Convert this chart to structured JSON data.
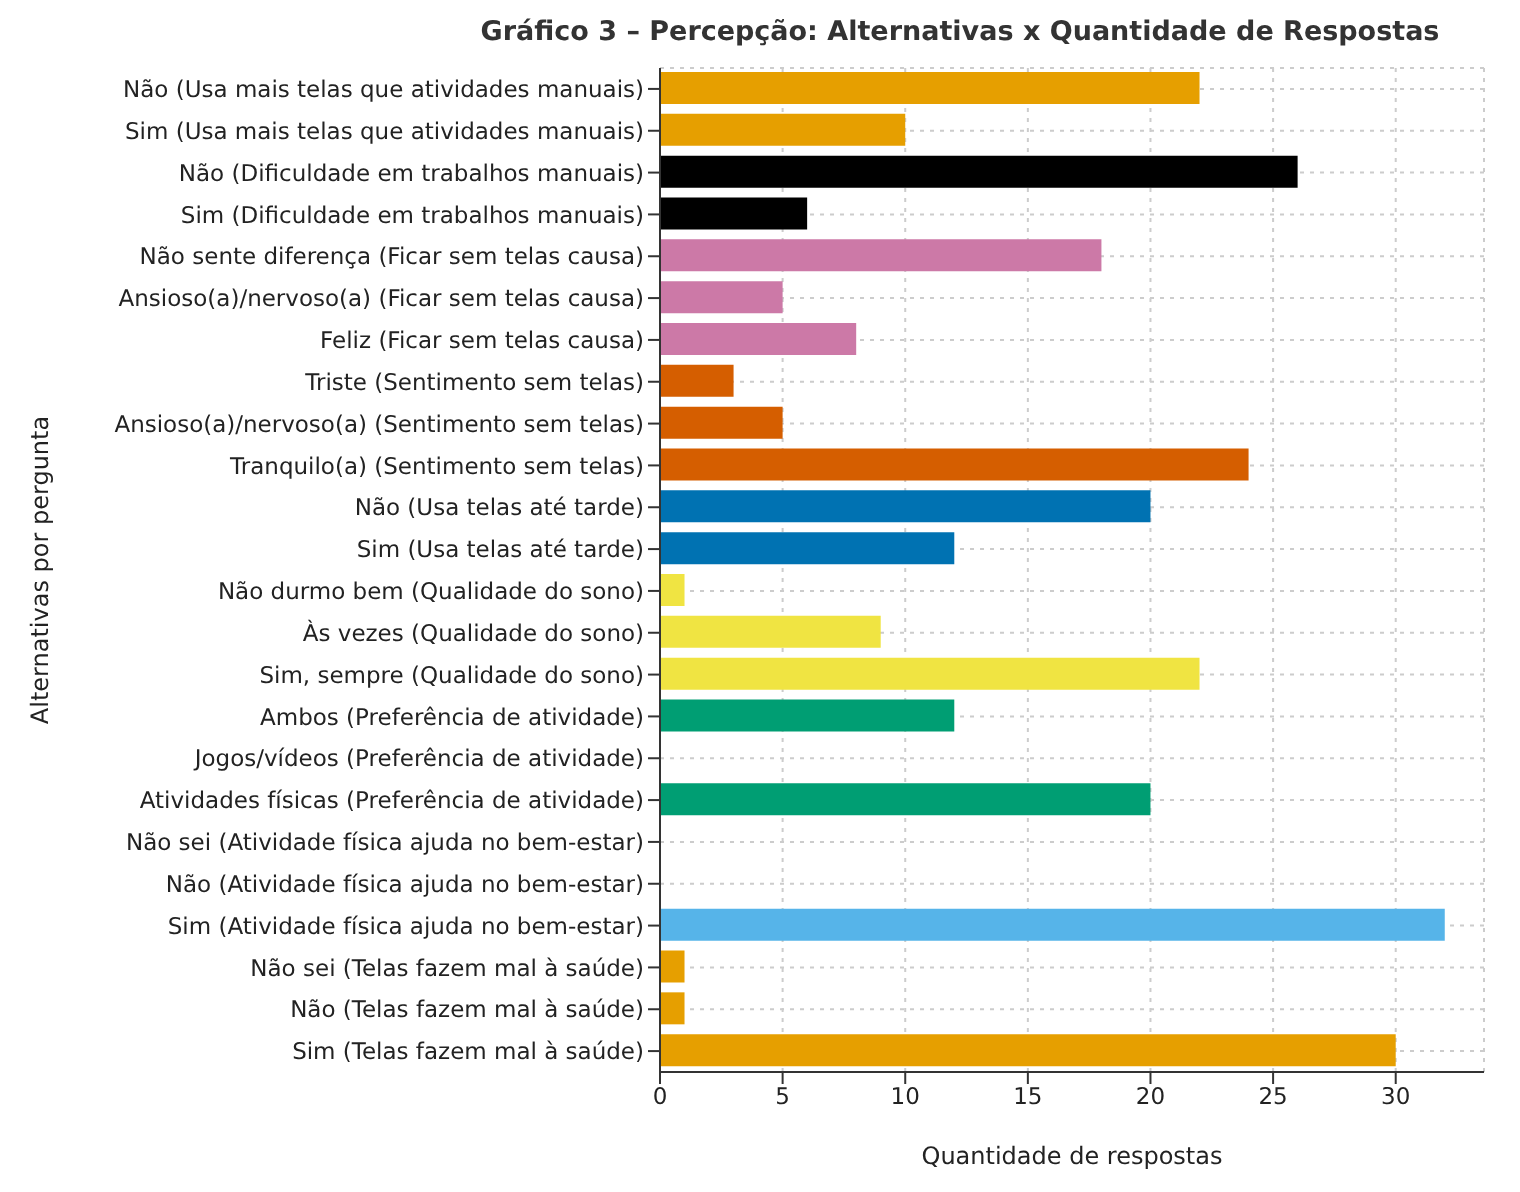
{
  "chart_data": {
    "type": "bar",
    "orientation": "horizontal",
    "title": "Gráfico 3 – Percepção: Alternativas x Quantidade de Respostas",
    "xlabel": "Quantidade de respostas",
    "ylabel": "Alternativas por pergunta",
    "categories": [
      "Não (Usa mais telas que atividades manuais)",
      "Sim (Usa mais telas que atividades manuais)",
      "Não (Dificuldade em trabalhos manuais)",
      "Sim (Dificuldade em trabalhos manuais)",
      "Não sente diferença (Ficar sem telas causa)",
      "Ansioso(a)/nervoso(a) (Ficar sem telas causa)",
      "Feliz (Ficar sem telas causa)",
      "Triste (Sentimento sem telas)",
      "Ansioso(a)/nervoso(a) (Sentimento sem telas)",
      "Tranquilo(a) (Sentimento sem telas)",
      "Não (Usa telas até tarde)",
      "Sim (Usa telas até tarde)",
      "Não durmo bem (Qualidade do sono)",
      "Às vezes (Qualidade do sono)",
      "Sim, sempre (Qualidade do sono)",
      "Ambos (Preferência de atividade)",
      "Jogos/vídeos (Preferência de atividade)",
      "Atividades físicas (Preferência de atividade)",
      "Não sei (Atividade física ajuda no bem-estar)",
      "Não (Atividade física ajuda no bem-estar)",
      "Sim (Atividade física ajuda no bem-estar)",
      "Não sei (Telas fazem mal à saúde)",
      "Não (Telas fazem mal à saúde)",
      "Sim (Telas fazem mal à saúde)"
    ],
    "values": [
      22,
      10,
      26,
      6,
      18,
      5,
      8,
      3,
      5,
      24,
      20,
      12,
      1,
      9,
      22,
      12,
      0,
      20,
      0,
      0,
      32,
      1,
      1,
      30
    ],
    "colors": [
      "#e69f00",
      "#e69f00",
      "#000000",
      "#000000",
      "#cc79a7",
      "#cc79a7",
      "#cc79a7",
      "#d55e00",
      "#d55e00",
      "#d55e00",
      "#0072b2",
      "#0072b2",
      "#f0e442",
      "#f0e442",
      "#f0e442",
      "#009e73",
      "#009e73",
      "#009e73",
      "#56b4e9",
      "#56b4e9",
      "#56b4e9",
      "#e69f00",
      "#e69f00",
      "#e69f00"
    ],
    "xlim": [
      0,
      33.6
    ],
    "xticks": [
      0,
      5,
      10,
      15,
      20,
      25,
      30
    ],
    "grid": true
  }
}
